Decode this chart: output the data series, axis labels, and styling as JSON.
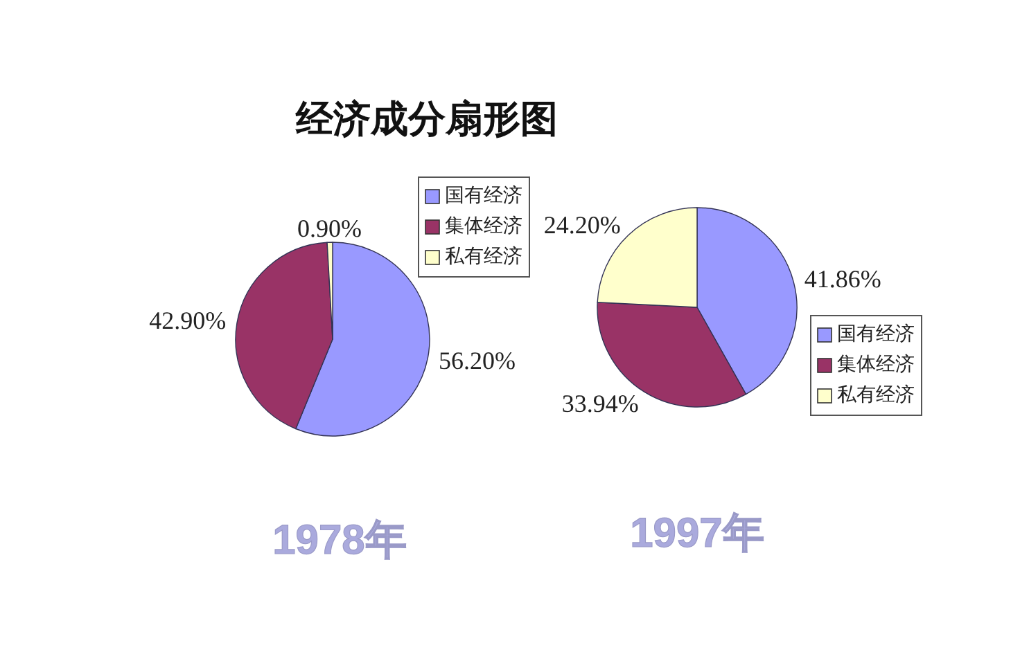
{
  "chart_data": [
    {
      "type": "pie",
      "title": "经济成分扇形图",
      "xlabel": "1978年",
      "categories": [
        "国有经济",
        "集体经济",
        "私有经济"
      ],
      "values": [
        56.2,
        42.9,
        0.9
      ],
      "value_labels": [
        "56.20%",
        "42.90%",
        "0.90%"
      ],
      "colors": [
        "#9999ff",
        "#993366",
        "#ffffcc"
      ],
      "legend": "top right"
    },
    {
      "type": "pie",
      "xlabel": "1997年",
      "categories": [
        "国有经济",
        "集体经济",
        "私有经济"
      ],
      "values": [
        41.86,
        33.94,
        24.2
      ],
      "value_labels": [
        "41.86%",
        "33.94%",
        "24.20%"
      ],
      "colors": [
        "#9999ff",
        "#993366",
        "#ffffcc"
      ],
      "legend": "bottom right"
    }
  ]
}
